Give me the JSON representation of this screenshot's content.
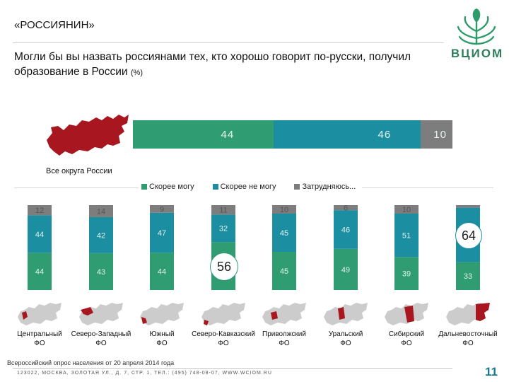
{
  "header": {
    "tag": "«РОССИЯНИН»",
    "question": "Могли бы вы назвать россиянами тех, кто хорошо говорит по-русски, получил образование в России",
    "unit": "(%)",
    "logo_text": "ВЦИОМ"
  },
  "overall": {
    "label": "Все округа России",
    "values": [
      44,
      46,
      10
    ]
  },
  "colors": {
    "green": "#2f9c72",
    "teal": "#1b8ea2",
    "gray": "#7d7d7d",
    "map_gray": "#cccccc",
    "map_red": "#a8171f"
  },
  "chart_data": {
    "type": "bar",
    "stacked": true,
    "series": [
      {
        "name": "Скорее могу",
        "values": [
          44,
          43,
          44,
          56,
          45,
          49,
          39,
          33
        ]
      },
      {
        "name": "Скорее не могу",
        "values": [
          44,
          42,
          47,
          32,
          45,
          46,
          51,
          64
        ]
      },
      {
        "name": "Затрудняюсь...",
        "values": [
          12,
          14,
          9,
          11,
          10,
          6,
          10,
          3
        ]
      }
    ],
    "categories": [
      "Центральный ФО",
      "Северо-Западный ФО",
      "Южный ФО",
      "Северо-Кавказский ФО",
      "Приволжский ФО",
      "Уральский ФО",
      "Сибирский ФО",
      "Дальневосточный ФО"
    ],
    "ylim": [
      0,
      100
    ],
    "legend": "top"
  },
  "district_labels": [
    {
      "line1": "Центральный",
      "line2": "ФО"
    },
    {
      "line1": "Северо-Западный",
      "line2": "ФО"
    },
    {
      "line1": "Южный",
      "line2": "ФО"
    },
    {
      "line1": "Северо-Кавказский",
      "line2": "ФО"
    },
    {
      "line1": "Приволжский",
      "line2": "ФО"
    },
    {
      "line1": "Уральский",
      "line2": "ФО"
    },
    {
      "line1": "Сибирский",
      "line2": "ФО"
    },
    {
      "line1": "Дальневосточный",
      "line2": "ФО"
    }
  ],
  "column_labels": [
    [
      "44",
      "44",
      "12"
    ],
    [
      "43",
      "42",
      "14"
    ],
    [
      "44",
      "47",
      "9"
    ],
    [
      "56",
      "32",
      "11"
    ],
    [
      "45",
      "45",
      "10"
    ],
    [
      "49",
      "46",
      "6"
    ],
    [
      "39",
      "51",
      "10"
    ],
    [
      "33",
      "64",
      ""
    ]
  ],
  "footer": {
    "note": "Всероссийский опрос населения от 20 апреля 2014 года",
    "address": "123022, МОСКВА, ЗОЛОТАЯ УЛ., Д. 7, СТР. 1, ТЕЛ.: (495) 748-08-07, WWW.WCIOM.RU",
    "page": "11"
  }
}
